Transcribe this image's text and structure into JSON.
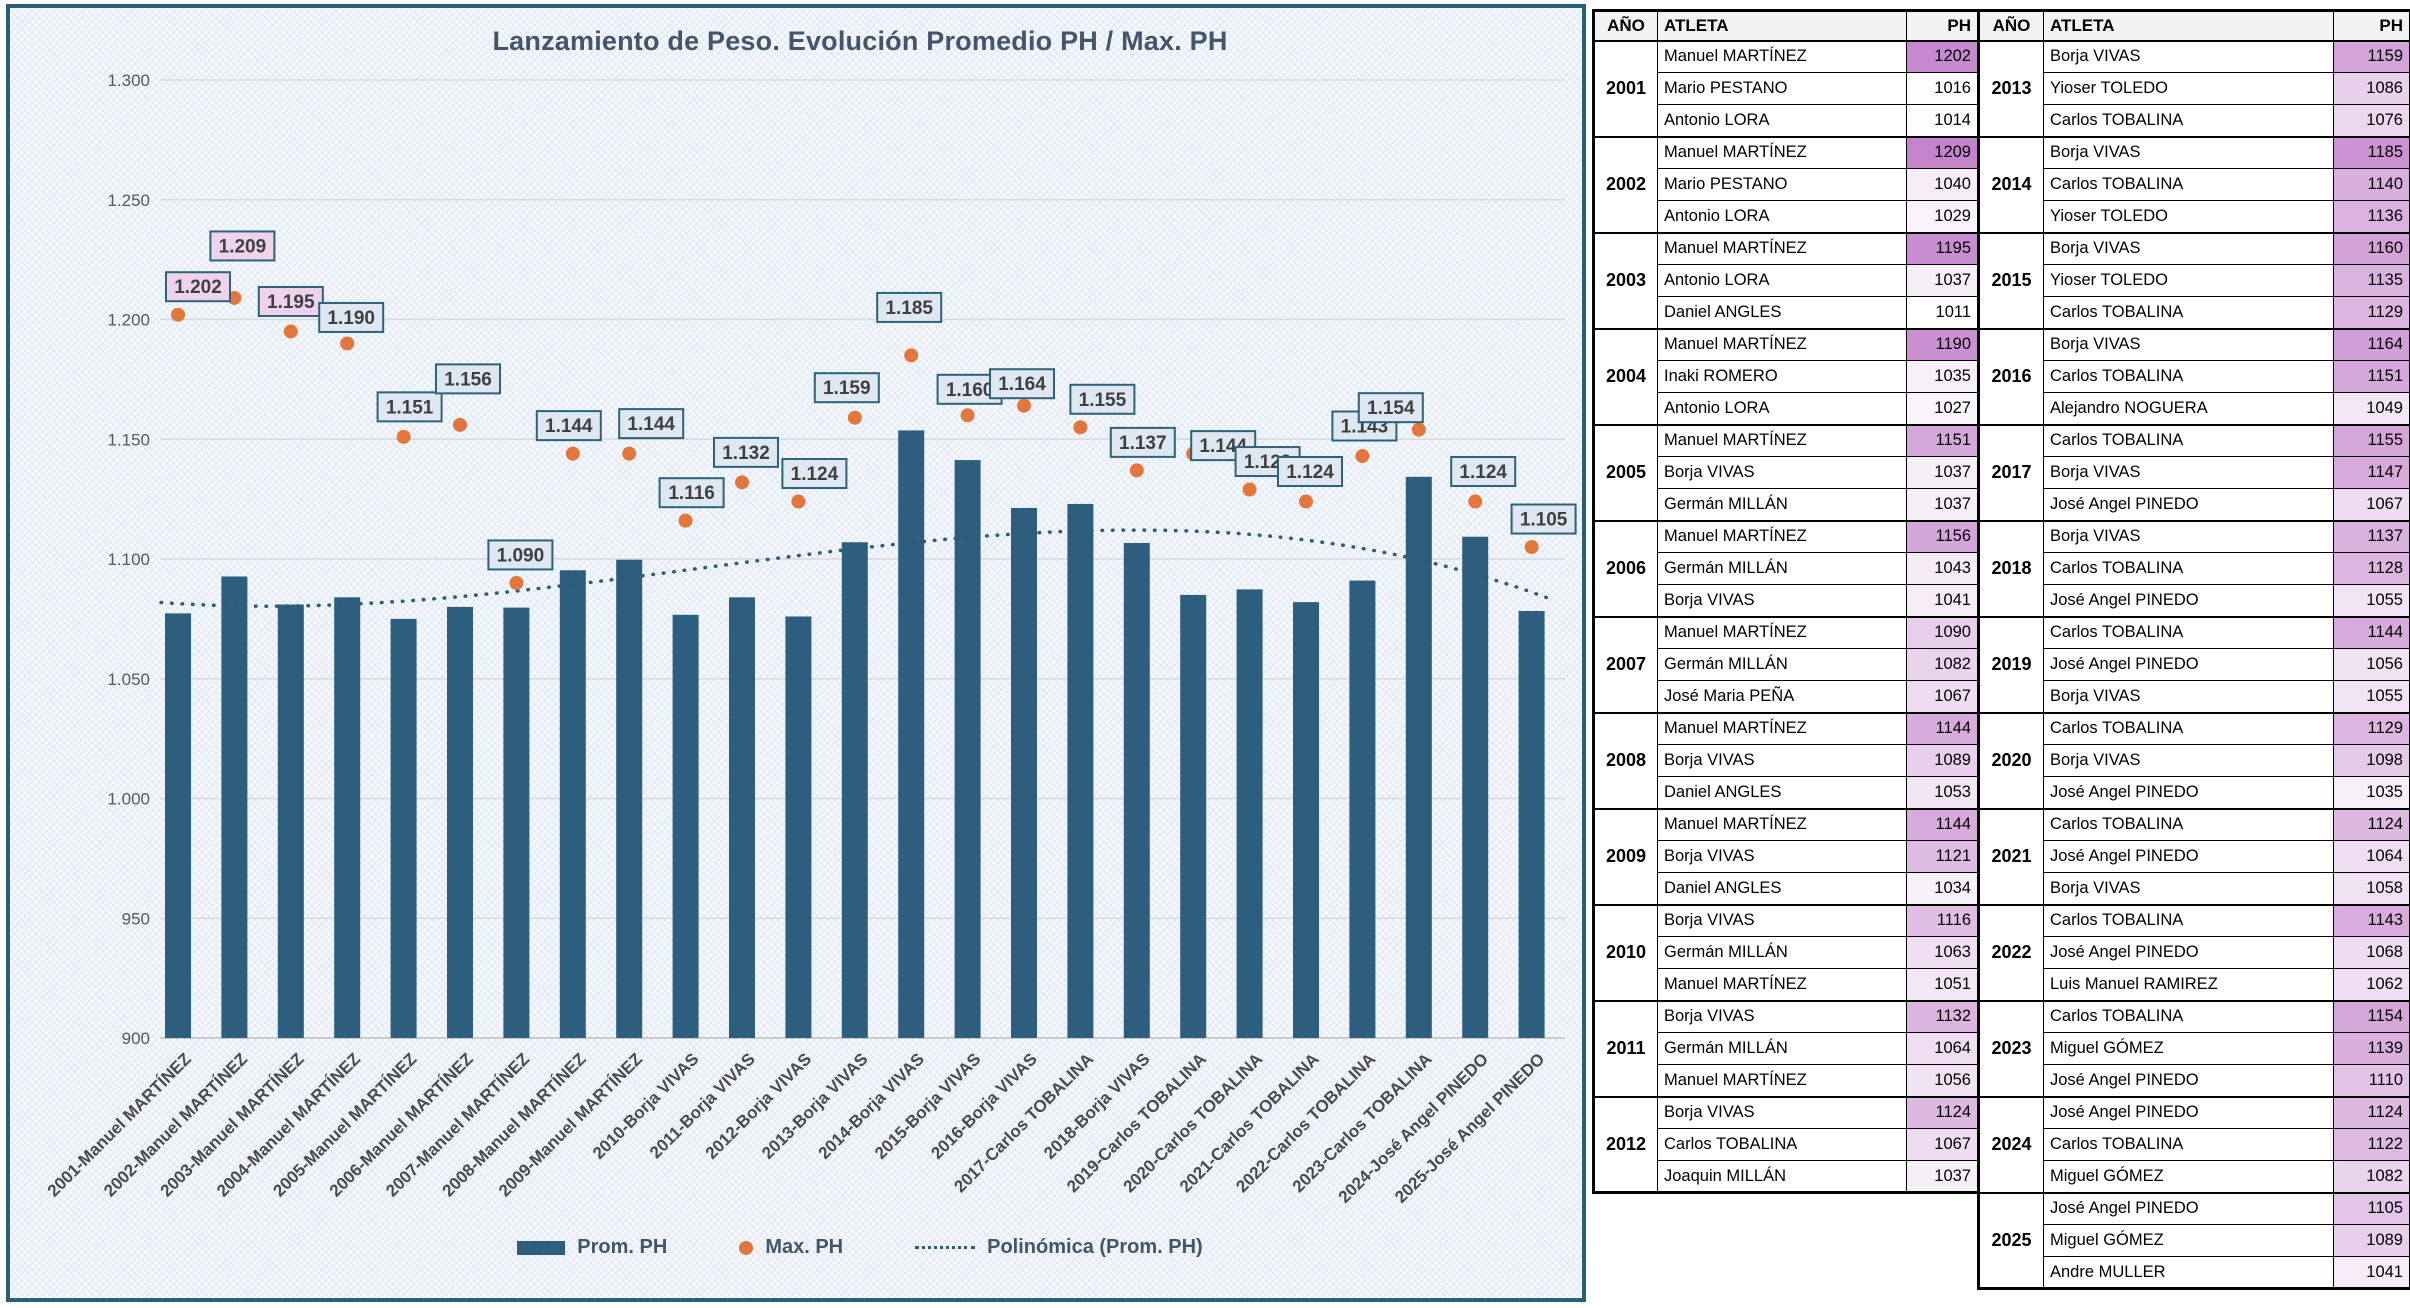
{
  "chart": {
    "chart_data": {
      "type": "bar",
      "title": "Lanzamiento de Peso. Evolución Promedio PH / Max. PH",
      "categories": [
        "2001-Manuel MARTÍNEZ",
        "2002-Manuel MARTÍNEZ",
        "2003-Manuel MARTÍNEZ",
        "2004-Manuel MARTÍNEZ",
        "2005-Manuel MARTÍNEZ",
        "2006-Manuel MARTÍNEZ",
        "2007-Manuel MARTÍNEZ",
        "2008-Manuel MARTÍNEZ",
        "2009-Manuel MARTÍNEZ",
        "2010-Borja VIVAS",
        "2011-Borja VIVAS",
        "2012-Borja VIVAS",
        "2013-Borja VIVAS",
        "2014-Borja VIVAS",
        "2015-Borja VIVAS",
        "2016-Borja VIVAS",
        "2017-Carlos TOBALINA",
        "2018-Borja VIVAS",
        "2019-Carlos TOBALINA",
        "2020-Carlos TOBALINA",
        "2021-Carlos TOBALINA",
        "2022-Carlos TOBALINA",
        "2023-Carlos TOBALINA",
        "2024-José Angel PINEDO",
        "2025-José Angel PINEDO"
      ],
      "series": [
        {
          "name": "Prom. PH",
          "type": "bar",
          "values": [
            1077.3,
            1092.7,
            1081,
            1084,
            1075,
            1080,
            1079.7,
            1095.3,
            1099.7,
            1076.7,
            1084,
            1076,
            1107,
            1153.7,
            1141.3,
            1121.3,
            1123,
            1106.7,
            1085,
            1087.3,
            1082,
            1091,
            1134.3,
            1109.3,
            1078.3
          ]
        },
        {
          "name": "Max. PH",
          "type": "scatter",
          "values": [
            1202,
            1209,
            1195,
            1190,
            1151,
            1156,
            1090,
            1144,
            1144,
            1116,
            1132,
            1124,
            1159,
            1185,
            1160,
            1164,
            1155,
            1137,
            1144,
            1129,
            1124,
            1143,
            1154,
            1124,
            1105
          ],
          "labels": [
            "1.202",
            "1.209",
            "1.195",
            "1.190",
            "1.151",
            "1.156",
            "1.090",
            "1.144",
            "1.144",
            "1.116",
            "1.132",
            "1.124",
            "1.159",
            "1.185",
            "1.160",
            "1.164",
            "1.155",
            "1.137",
            "1.144",
            "1.129",
            "1.124",
            "1.143",
            "1.154",
            "1.124",
            "1.105"
          ],
          "label_highlighted": [
            true,
            true,
            true,
            false,
            false,
            false,
            false,
            false,
            false,
            false,
            false,
            false,
            false,
            false,
            false,
            false,
            false,
            false,
            false,
            false,
            false,
            false,
            false,
            false,
            false
          ]
        },
        {
          "name": "Polinómica (Prom. PH)",
          "type": "trendline-polynomial"
        }
      ],
      "ylim": [
        900,
        1300
      ],
      "ytick_labels": [
        "900",
        "950",
        "1.000",
        "1.050",
        "1.100",
        "1.150",
        "1.200",
        "1.250",
        "1.300"
      ],
      "grid": true,
      "legend_position": "bottom"
    },
    "title": "Lanzamiento de Peso. Evolución Promedio PH / Max. PH",
    "legend": [
      "Prom. PH",
      "Max. PH",
      "Polinómica (Prom. PH)"
    ],
    "colors": {
      "bar": "#2E5E7E",
      "dot": "#E2763C",
      "trend": "#2F5A78",
      "label_box_fill": "#DEE7F2",
      "label_box_fill_highlight": "#EFD3EE",
      "label_box_border": "#2E6275",
      "label_text": "#3F3F3F",
      "gridline": "#D9D9D9",
      "axis_line": "#BFBFBF",
      "tick_text": "#595959",
      "category_text": "#4A4A4A",
      "title_text": "#44546A",
      "panel_border": "#2A5F78"
    }
  },
  "tables": {
    "header": {
      "year": "AÑO",
      "athlete": "ATLETA",
      "ph": "PH"
    },
    "heat": {
      "min": 1011,
      "max": 1209,
      "min_color": "#FFFFFF",
      "max_color": "#C484CC"
    },
    "left": [
      {
        "year": "2001",
        "rows": [
          [
            "Manuel MARTÍNEZ",
            1202
          ],
          [
            "Mario PESTANO",
            1016
          ],
          [
            "Antonio LORA",
            1014
          ]
        ]
      },
      {
        "year": "2002",
        "rows": [
          [
            "Manuel MARTÍNEZ",
            1209
          ],
          [
            "Mario PESTANO",
            1040
          ],
          [
            "Antonio LORA",
            1029
          ]
        ]
      },
      {
        "year": "2003",
        "rows": [
          [
            "Manuel MARTÍNEZ",
            1195
          ],
          [
            "Antonio LORA",
            1037
          ],
          [
            "Daniel ANGLES",
            1011
          ]
        ]
      },
      {
        "year": "2004",
        "rows": [
          [
            "Manuel MARTÍNEZ",
            1190
          ],
          [
            "Inaki ROMERO",
            1035
          ],
          [
            "Antonio LORA",
            1027
          ]
        ]
      },
      {
        "year": "2005",
        "rows": [
          [
            "Manuel MARTÍNEZ",
            1151
          ],
          [
            "Borja VIVAS",
            1037
          ],
          [
            "Germán MILLÁN",
            1037
          ]
        ]
      },
      {
        "year": "2006",
        "rows": [
          [
            "Manuel MARTÍNEZ",
            1156
          ],
          [
            "Germán MILLÁN",
            1043
          ],
          [
            "Borja VIVAS",
            1041
          ]
        ]
      },
      {
        "year": "2007",
        "rows": [
          [
            "Manuel MARTÍNEZ",
            1090
          ],
          [
            "Germán MILLÁN",
            1082
          ],
          [
            "José Maria PEÑA",
            1067
          ]
        ]
      },
      {
        "year": "2008",
        "rows": [
          [
            "Manuel MARTÍNEZ",
            1144
          ],
          [
            "Borja VIVAS",
            1089
          ],
          [
            "Daniel ANGLES",
            1053
          ]
        ]
      },
      {
        "year": "2009",
        "rows": [
          [
            "Manuel MARTÍNEZ",
            1144
          ],
          [
            "Borja VIVAS",
            1121
          ],
          [
            "Daniel ANGLES",
            1034
          ]
        ]
      },
      {
        "year": "2010",
        "rows": [
          [
            "Borja VIVAS",
            1116
          ],
          [
            "Germán MILLÁN",
            1063
          ],
          [
            "Manuel MARTÍNEZ",
            1051
          ]
        ]
      },
      {
        "year": "2011",
        "rows": [
          [
            "Borja VIVAS",
            1132
          ],
          [
            "Germán MILLÁN",
            1064
          ],
          [
            "Manuel MARTÍNEZ",
            1056
          ]
        ]
      },
      {
        "year": "2012",
        "rows": [
          [
            "Borja VIVAS",
            1124
          ],
          [
            "Carlos TOBALINA",
            1067
          ],
          [
            "Joaquin MILLÁN",
            1037
          ]
        ]
      }
    ],
    "right": [
      {
        "year": "2013",
        "rows": [
          [
            "Borja VIVAS",
            1159
          ],
          [
            "Yioser TOLEDO",
            1086
          ],
          [
            "Carlos TOBALINA",
            1076
          ]
        ]
      },
      {
        "year": "2014",
        "rows": [
          [
            "Borja VIVAS",
            1185
          ],
          [
            "Carlos TOBALINA",
            1140
          ],
          [
            "Yioser TOLEDO",
            1136
          ]
        ]
      },
      {
        "year": "2015",
        "rows": [
          [
            "Borja VIVAS",
            1160
          ],
          [
            "Yioser TOLEDO",
            1135
          ],
          [
            "Carlos TOBALINA",
            1129
          ]
        ]
      },
      {
        "year": "2016",
        "rows": [
          [
            "Borja VIVAS",
            1164
          ],
          [
            "Carlos TOBALINA",
            1151
          ],
          [
            "Alejandro NOGUERA",
            1049
          ]
        ]
      },
      {
        "year": "2017",
        "rows": [
          [
            "Carlos TOBALINA",
            1155
          ],
          [
            "Borja VIVAS",
            1147
          ],
          [
            "José Angel PINEDO",
            1067
          ]
        ]
      },
      {
        "year": "2018",
        "rows": [
          [
            "Borja VIVAS",
            1137
          ],
          [
            "Carlos TOBALINA",
            1128
          ],
          [
            "José Angel PINEDO",
            1055
          ]
        ]
      },
      {
        "year": "2019",
        "rows": [
          [
            "Carlos TOBALINA",
            1144
          ],
          [
            "José Angel PINEDO",
            1056
          ],
          [
            "Borja VIVAS",
            1055
          ]
        ]
      },
      {
        "year": "2020",
        "rows": [
          [
            "Carlos TOBALINA",
            1129
          ],
          [
            "Borja VIVAS",
            1098
          ],
          [
            "José Angel PINEDO",
            1035
          ]
        ]
      },
      {
        "year": "2021",
        "rows": [
          [
            "Carlos TOBALINA",
            1124
          ],
          [
            "José Angel PINEDO",
            1064
          ],
          [
            "Borja VIVAS",
            1058
          ]
        ]
      },
      {
        "year": "2022",
        "rows": [
          [
            "Carlos TOBALINA",
            1143
          ],
          [
            "José Angel PINEDO",
            1068
          ],
          [
            "Luis Manuel RAMIREZ",
            1062
          ]
        ]
      },
      {
        "year": "2023",
        "rows": [
          [
            "Carlos TOBALINA",
            1154
          ],
          [
            "Miguel GÓMEZ",
            1139
          ],
          [
            "José Angel PINEDO",
            1110
          ]
        ]
      },
      {
        "year": "2024",
        "rows": [
          [
            "José Angel PINEDO",
            1124
          ],
          [
            "Carlos TOBALINA",
            1122
          ],
          [
            "Miguel GÓMEZ",
            1082
          ]
        ]
      },
      {
        "year": "2025",
        "rows": [
          [
            "José Angel PINEDO",
            1105
          ],
          [
            "Miguel GÓMEZ",
            1089
          ],
          [
            "Andre MULLER",
            1041
          ]
        ]
      }
    ]
  }
}
